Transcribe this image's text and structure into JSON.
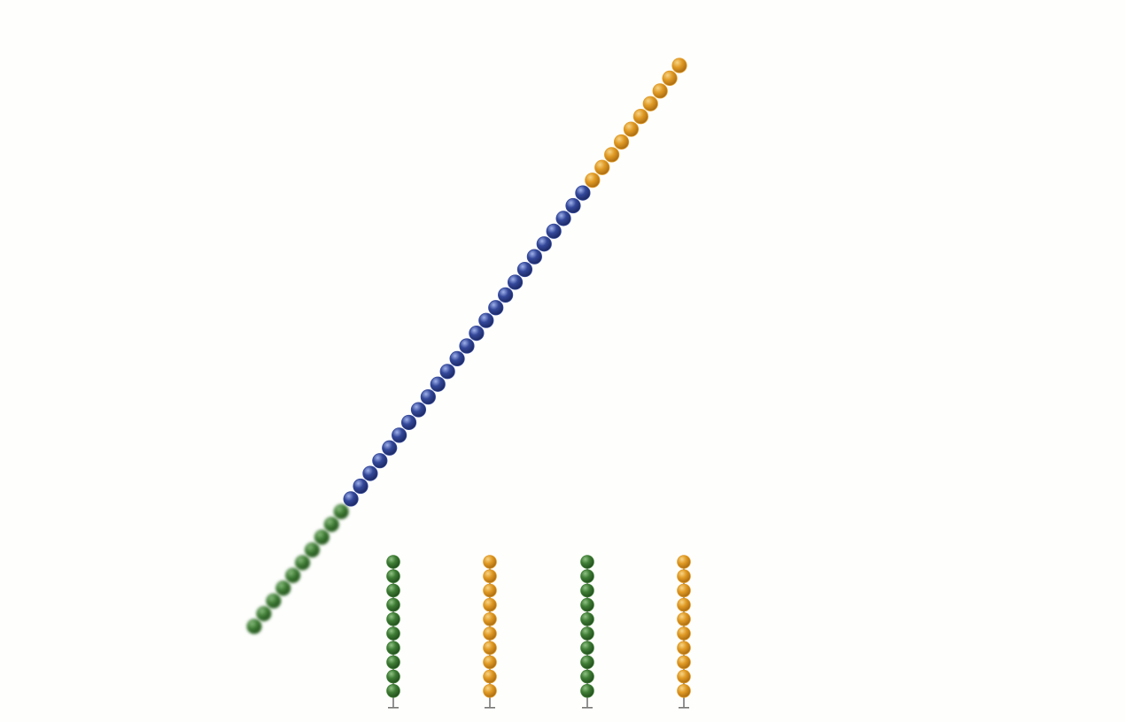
{
  "colors": {
    "background": "#fefefd",
    "green": "#3f7d35",
    "blue": "#34489a",
    "orange": "#e09a24",
    "stem": "#777777"
  },
  "diagonal_string": {
    "segments": [
      {
        "color_key": "green",
        "count": 10,
        "blurred": true
      },
      {
        "color_key": "blue",
        "count": 25,
        "blurred": false
      },
      {
        "color_key": "orange",
        "count": 10,
        "blurred": false
      }
    ]
  },
  "rods": [
    {
      "color_key": "green",
      "count": 10
    },
    {
      "color_key": "orange",
      "count": 10
    },
    {
      "color_key": "green",
      "count": 10
    },
    {
      "color_key": "orange",
      "count": 10
    }
  ]
}
